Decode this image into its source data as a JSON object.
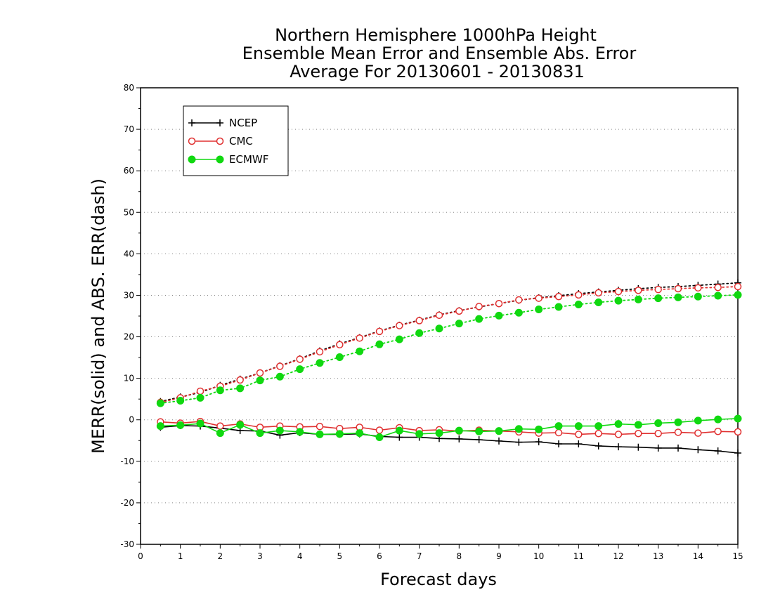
{
  "chart_data": {
    "type": "line",
    "title_lines": [
      "Northern Hemisphere 1000hPa Height",
      "Ensemble Mean Error and Ensemble Abs. Error",
      "Average For 20130601 - 20130831"
    ],
    "xlabel": "Forecast days",
    "ylabel": "MERR(solid) and ABS. ERR(dash)",
    "xlim": [
      0,
      15
    ],
    "ylim": [
      -30,
      80
    ],
    "xticks": [
      0,
      1,
      2,
      3,
      4,
      5,
      6,
      7,
      8,
      9,
      10,
      11,
      12,
      13,
      14,
      15
    ],
    "yticks": [
      -30,
      -20,
      -10,
      0,
      10,
      20,
      30,
      40,
      50,
      60,
      70,
      80
    ],
    "grid": "horizontal dotted",
    "legend_position": "top-left",
    "x": [
      0.5,
      1,
      1.5,
      2,
      2.5,
      3,
      3.5,
      4,
      4.5,
      5,
      5.5,
      6,
      6.5,
      7,
      7.5,
      8,
      8.5,
      9,
      9.5,
      10,
      10.5,
      11,
      11.5,
      12,
      12.5,
      13,
      13.5,
      14,
      14.5,
      15
    ],
    "series": [
      {
        "name": "NCEP",
        "color": "#000000",
        "marker": "plus",
        "merr": [
          -1.8,
          -1.4,
          -1.5,
          -2.0,
          -2.6,
          -2.7,
          -3.7,
          -3.1,
          -3.5,
          -3.5,
          -3.4,
          -4.0,
          -4.2,
          -4.2,
          -4.5,
          -4.6,
          -4.8,
          -5.1,
          -5.4,
          -5.3,
          -5.8,
          -5.8,
          -6.3,
          -6.5,
          -6.6,
          -6.8,
          -6.8,
          -7.2,
          -7.5,
          -8.0
        ],
        "abs_err": [
          4.4,
          5.5,
          6.6,
          8.3,
          9.8,
          11.3,
          13.0,
          14.7,
          16.6,
          18.3,
          19.8,
          21.4,
          22.8,
          24.0,
          25.3,
          26.3,
          27.2,
          28.0,
          28.8,
          29.4,
          29.9,
          30.4,
          30.8,
          31.2,
          31.6,
          31.9,
          32.1,
          32.4,
          32.7,
          33.0
        ]
      },
      {
        "name": "CMC",
        "color": "#e03030",
        "marker": "open-circle",
        "merr": [
          -0.5,
          -0.8,
          -0.4,
          -1.5,
          -1.0,
          -1.8,
          -1.5,
          -1.7,
          -1.6,
          -2.1,
          -1.8,
          -2.5,
          -1.9,
          -2.6,
          -2.4,
          -2.7,
          -2.5,
          -2.7,
          -2.9,
          -3.2,
          -3.1,
          -3.5,
          -3.3,
          -3.5,
          -3.3,
          -3.3,
          -3.0,
          -3.2,
          -2.8,
          -2.9
        ],
        "abs_err": [
          4.2,
          5.3,
          6.9,
          8.1,
          9.6,
          11.3,
          12.9,
          14.6,
          16.4,
          18.1,
          19.7,
          21.3,
          22.7,
          23.9,
          25.2,
          26.2,
          27.3,
          28.0,
          28.9,
          29.3,
          29.7,
          30.1,
          30.6,
          30.9,
          31.2,
          31.4,
          31.6,
          31.8,
          31.9,
          32.1
        ]
      },
      {
        "name": "ECMWF",
        "color": "#10d810",
        "marker": "filled-circle",
        "merr": [
          -1.5,
          -1.3,
          -0.9,
          -3.2,
          -1.2,
          -3.2,
          -2.6,
          -2.9,
          -3.5,
          -3.4,
          -3.2,
          -4.2,
          -2.6,
          -3.4,
          -3.2,
          -2.6,
          -2.8,
          -2.7,
          -2.2,
          -2.3,
          -1.5,
          -1.5,
          -1.5,
          -1.0,
          -1.2,
          -0.8,
          -0.6,
          -0.2,
          0.1,
          0.3
        ],
        "abs_err": [
          4.0,
          4.6,
          5.3,
          7.1,
          7.6,
          9.5,
          10.4,
          12.2,
          13.7,
          15.1,
          16.5,
          18.2,
          19.4,
          20.9,
          22.0,
          23.2,
          24.3,
          25.1,
          25.8,
          26.6,
          27.2,
          27.8,
          28.3,
          28.7,
          29.0,
          29.3,
          29.5,
          29.7,
          29.9,
          30.1
        ]
      }
    ]
  }
}
